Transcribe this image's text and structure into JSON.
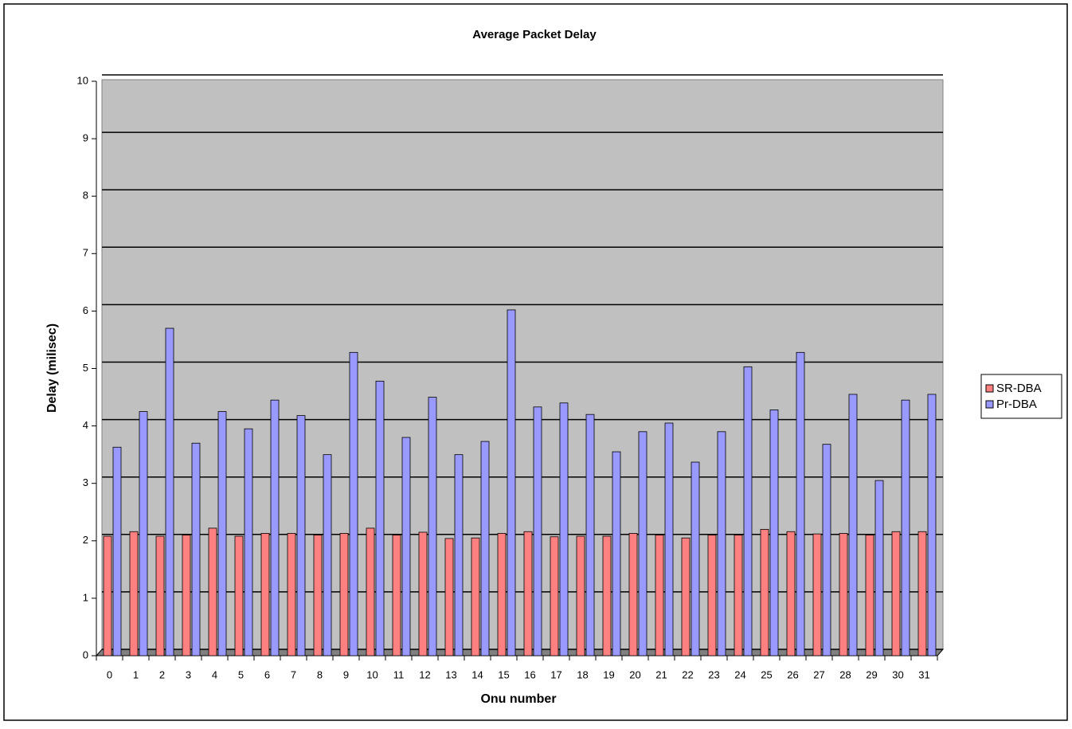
{
  "chart_data": {
    "type": "bar",
    "title": "Average Packet Delay",
    "x_label": "Onu number",
    "y_label": "Delay (milisec)",
    "categories": [
      "0",
      "1",
      "2",
      "3",
      "4",
      "5",
      "6",
      "7",
      "8",
      "9",
      "10",
      "11",
      "12",
      "13",
      "14",
      "15",
      "16",
      "17",
      "18",
      "19",
      "20",
      "21",
      "22",
      "23",
      "24",
      "25",
      "26",
      "27",
      "28",
      "29",
      "30",
      "31"
    ],
    "series": [
      {
        "name": "SR-DBA",
        "color": "#ff8080",
        "values": [
          2.08,
          2.16,
          2.08,
          2.1,
          2.22,
          2.08,
          2.13,
          2.13,
          2.1,
          2.13,
          2.22,
          2.1,
          2.15,
          2.04,
          2.05,
          2.13,
          2.16,
          2.07,
          2.08,
          2.08,
          2.13,
          2.1,
          2.05,
          2.1,
          2.1,
          2.2,
          2.16,
          2.12,
          2.13,
          2.1,
          2.16,
          2.16
        ]
      },
      {
        "name": "Pr-DBA",
        "color": "#9999ff",
        "values": [
          3.63,
          4.25,
          5.7,
          3.7,
          4.25,
          3.95,
          4.45,
          4.18,
          3.5,
          5.28,
          4.78,
          3.8,
          4.5,
          3.5,
          3.73,
          6.02,
          4.33,
          4.4,
          4.2,
          3.55,
          3.9,
          4.05,
          3.37,
          3.9,
          5.03,
          4.28,
          5.28,
          3.68,
          4.55,
          3.05,
          4.45,
          4.55
        ]
      }
    ],
    "ylim": [
      0,
      10
    ],
    "yticks": [
      0,
      1,
      2,
      3,
      4,
      5,
      6,
      7,
      8,
      9,
      10
    ],
    "grid": true,
    "legend": "right"
  }
}
